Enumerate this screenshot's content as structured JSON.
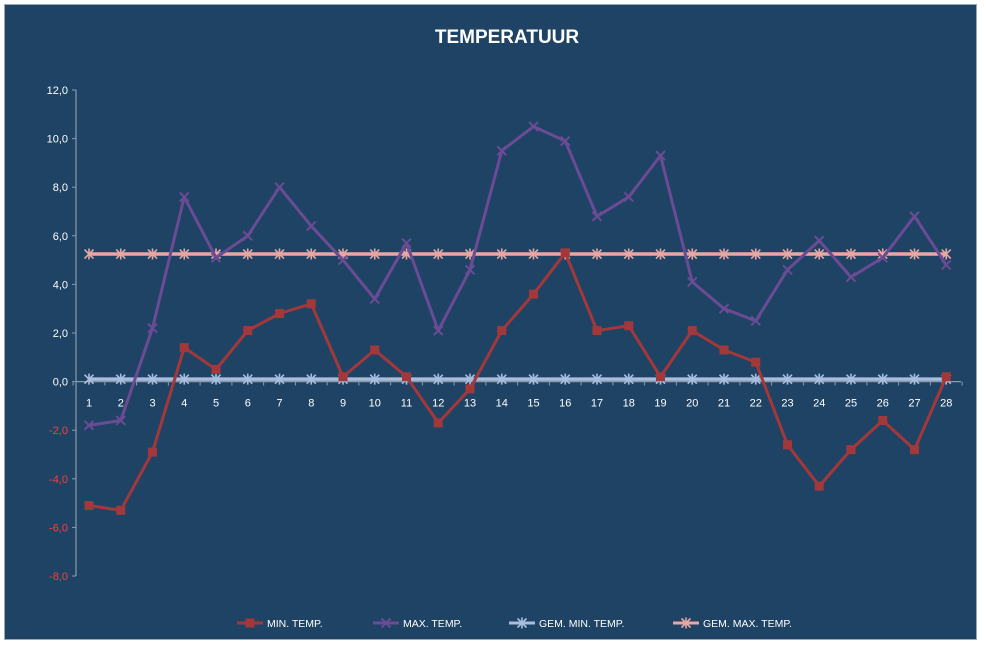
{
  "chart_data": {
    "type": "line",
    "title": "TEMPERATUUR",
    "xlabel": "",
    "ylabel": "",
    "x": [
      1,
      2,
      3,
      4,
      5,
      6,
      7,
      8,
      9,
      10,
      11,
      12,
      13,
      14,
      15,
      16,
      17,
      18,
      19,
      20,
      21,
      22,
      23,
      24,
      25,
      26,
      27,
      28
    ],
    "x_tick_labels": [
      "1",
      "2",
      "3",
      "4",
      "5",
      "6",
      "7",
      "8",
      "9",
      "10",
      "11",
      "12",
      "13",
      "14",
      "15",
      "16",
      "17",
      "18",
      "19",
      "20",
      "21",
      "22",
      "23",
      "24",
      "25",
      "26",
      "27",
      "28"
    ],
    "ylim": [
      -8,
      12
    ],
    "y_ticks": [
      12,
      10,
      8,
      6,
      4,
      2,
      0,
      -2,
      -4,
      -6,
      -8
    ],
    "y_tick_labels": [
      "12,0",
      "10,0",
      "8,0",
      "6,0",
      "4,0",
      "2,0",
      "0,0",
      "-2,0",
      "-4,0",
      "-6,0",
      "-8,0"
    ],
    "positive_tick_color": "#ffffff",
    "negative_tick_color": "#ff3b3b",
    "background_color": "#1f4364",
    "grid": false,
    "legend_position": "bottom",
    "series": [
      {
        "name": "MIN. TEMP.",
        "color": "#a3383b",
        "marker": "square",
        "values": [
          -5.1,
          -5.3,
          -2.9,
          1.4,
          0.5,
          2.1,
          2.8,
          3.2,
          0.2,
          1.3,
          0.2,
          -1.7,
          -0.3,
          2.1,
          3.6,
          5.3,
          2.1,
          2.3,
          0.2,
          2.1,
          1.3,
          0.8,
          -2.6,
          -4.3,
          -2.8,
          -1.6,
          -2.8,
          0.2
        ]
      },
      {
        "name": "MAX. TEMP.",
        "color": "#6a4b94",
        "marker": "x",
        "values": [
          -1.8,
          -1.6,
          2.2,
          7.6,
          5.1,
          6.0,
          8.0,
          6.4,
          5.0,
          3.4,
          5.7,
          2.1,
          4.6,
          9.5,
          10.5,
          9.9,
          6.8,
          7.6,
          9.3,
          4.1,
          3.0,
          2.5,
          4.6,
          5.8,
          4.3,
          5.1,
          6.8,
          4.8
        ]
      },
      {
        "name": "GEM. MIN. TEMP.",
        "color": "#a9bedf",
        "marker": "star",
        "values": [
          0.1,
          0.1,
          0.1,
          0.1,
          0.1,
          0.1,
          0.1,
          0.1,
          0.1,
          0.1,
          0.1,
          0.1,
          0.1,
          0.1,
          0.1,
          0.1,
          0.1,
          0.1,
          0.1,
          0.1,
          0.1,
          0.1,
          0.1,
          0.1,
          0.1,
          0.1,
          0.1,
          0.1
        ]
      },
      {
        "name": "GEM. MAX. TEMP.",
        "color": "#e8a7a3",
        "marker": "star",
        "values": [
          5.25,
          5.25,
          5.25,
          5.25,
          5.25,
          5.25,
          5.25,
          5.25,
          5.25,
          5.25,
          5.25,
          5.25,
          5.25,
          5.25,
          5.25,
          5.25,
          5.25,
          5.25,
          5.25,
          5.25,
          5.25,
          5.25,
          5.25,
          5.25,
          5.25,
          5.25,
          5.25,
          5.25
        ]
      }
    ]
  }
}
